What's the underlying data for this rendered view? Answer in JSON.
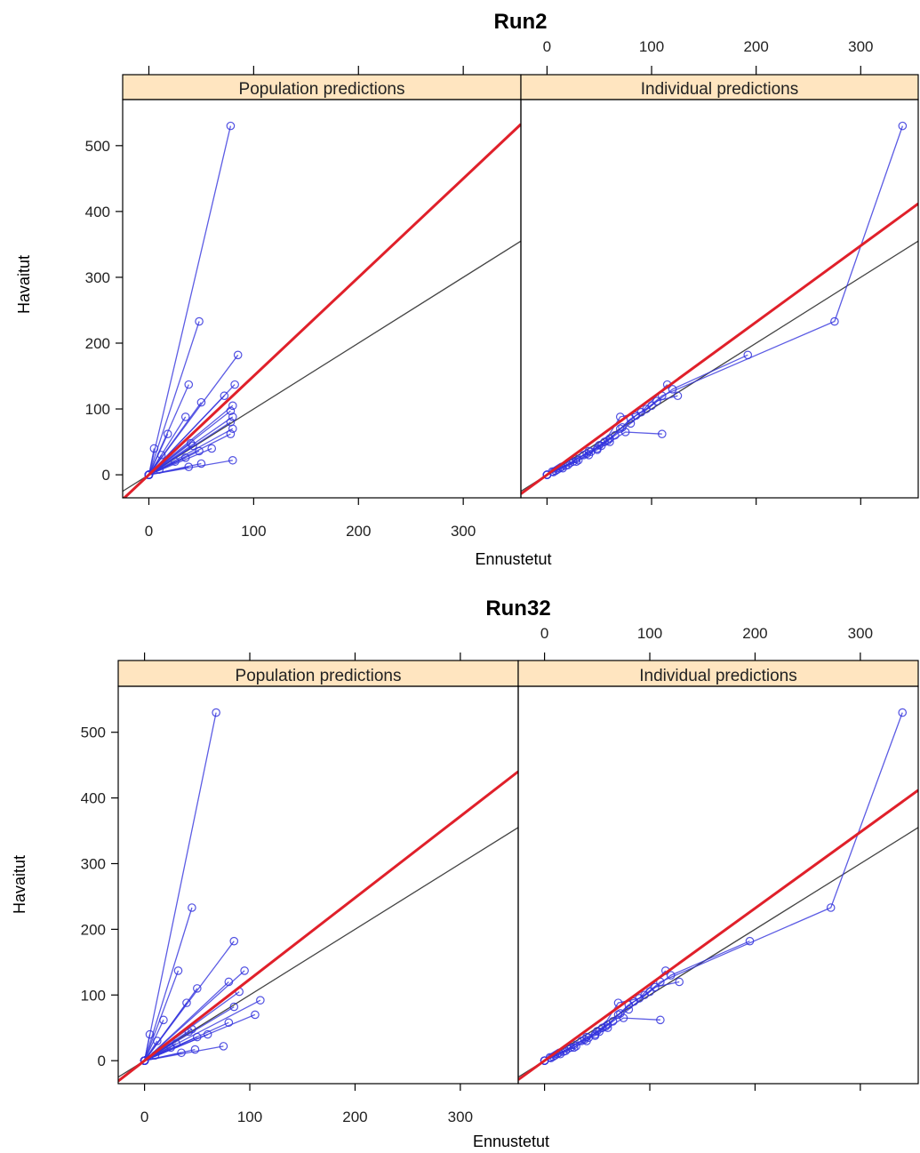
{
  "figure": {
    "xlabel": "Ennustetut",
    "ylabel": "Havaitut"
  },
  "colors": {
    "strip": "#ffe5c0",
    "points": "#3333dd",
    "fit": "#e0202a",
    "identity": "#444444",
    "frame": "#000000"
  },
  "chart_data": [
    {
      "type": "scatter",
      "title": "Run2",
      "xlabel": "Ennustetut",
      "ylabel": "Havaitut",
      "xlim": [
        -25,
        355
      ],
      "ylim": [
        -35,
        570
      ],
      "xticks": [
        0,
        100,
        200,
        300
      ],
      "yticks": [
        0,
        100,
        200,
        300,
        400,
        500
      ],
      "panels": [
        {
          "name": "Population predictions",
          "fit_line": {
            "slope": 1.5,
            "intercept": 0
          },
          "identity_line": {
            "slope": 1,
            "intercept": 0
          },
          "series": [
            [
              [
                0,
                0
              ],
              [
                78,
                530
              ]
            ],
            [
              [
                0,
                0
              ],
              [
                48,
                233
              ]
            ],
            [
              [
                0,
                0
              ],
              [
                85,
                182
              ]
            ],
            [
              [
                0,
                0
              ],
              [
                38,
                137
              ]
            ],
            [
              [
                0,
                0
              ],
              [
                82,
                137
              ]
            ],
            [
              [
                0,
                0
              ],
              [
                72,
                120
              ]
            ],
            [
              [
                0,
                0
              ],
              [
                50,
                110
              ]
            ],
            [
              [
                0,
                0
              ],
              [
                80,
                105
              ]
            ],
            [
              [
                0,
                0
              ],
              [
                78,
                97
              ]
            ],
            [
              [
                0,
                0
              ],
              [
                35,
                88
              ]
            ],
            [
              [
                0,
                0
              ],
              [
                80,
                88
              ]
            ],
            [
              [
                0,
                0
              ],
              [
                78,
                80
              ]
            ],
            [
              [
                0,
                0
              ],
              [
                80,
                70
              ]
            ],
            [
              [
                0,
                0
              ],
              [
                78,
                62
              ]
            ],
            [
              [
                0,
                0
              ],
              [
                18,
                62
              ]
            ],
            [
              [
                0,
                0
              ],
              [
                40,
                48
              ]
            ],
            [
              [
                0,
                0
              ],
              [
                5,
                40
              ]
            ],
            [
              [
                0,
                0
              ],
              [
                48,
                36
              ]
            ],
            [
              [
                0,
                0
              ],
              [
                35,
                26
              ]
            ],
            [
              [
                0,
                0
              ],
              [
                80,
                22
              ]
            ],
            [
              [
                0,
                0
              ],
              [
                50,
                17
              ]
            ],
            [
              [
                0,
                0
              ],
              [
                38,
                12
              ]
            ],
            [
              [
                0,
                0
              ],
              [
                10,
                8
              ]
            ],
            [
              [
                0,
                0
              ],
              [
                25,
                20
              ]
            ],
            [
              [
                0,
                0
              ],
              [
                12,
                30
              ]
            ],
            [
              [
                0,
                0
              ],
              [
                42,
                44
              ]
            ],
            [
              [
                0,
                0
              ],
              [
                60,
                40
              ]
            ]
          ]
        },
        {
          "name": "Individual predictions",
          "fit_line": {
            "slope": 1.16,
            "intercept": 0
          },
          "identity_line": {
            "slope": 1,
            "intercept": 0
          },
          "series": [
            [
              [
                0,
                0
              ],
              [
                5,
                5
              ],
              [
                12,
                10
              ],
              [
                20,
                15
              ],
              [
                30,
                22
              ],
              [
                40,
                30
              ],
              [
                50,
                45
              ],
              [
                60,
                55
              ],
              [
                70,
                70
              ],
              [
                80,
                85
              ],
              [
                95,
                100
              ],
              [
                110,
                120
              ],
              [
                275,
                233
              ],
              [
                340,
                530
              ]
            ],
            [
              [
                0,
                0
              ],
              [
                8,
                6
              ],
              [
                18,
                14
              ],
              [
                28,
                24
              ],
              [
                38,
                32
              ],
              [
                48,
                40
              ],
              [
                58,
                52
              ],
              [
                72,
                72
              ],
              [
                85,
                90
              ],
              [
                100,
                105
              ],
              [
                120,
                130
              ],
              [
                192,
                182
              ]
            ],
            [
              [
                0,
                0
              ],
              [
                10,
                8
              ],
              [
                22,
                18
              ],
              [
                35,
                30
              ],
              [
                48,
                38
              ],
              [
                60,
                50
              ],
              [
                75,
                65
              ],
              [
                110,
                62
              ]
            ],
            [
              [
                0,
                0
              ],
              [
                15,
                10
              ],
              [
                28,
                20
              ],
              [
                42,
                35
              ],
              [
                55,
                50
              ],
              [
                70,
                88
              ],
              [
                90,
                95
              ],
              [
                115,
                137
              ]
            ],
            [
              [
                0,
                0
              ],
              [
                6,
                4
              ],
              [
                14,
                12
              ],
              [
                25,
                20
              ],
              [
                40,
                36
              ],
              [
                52,
                44
              ],
              [
                65,
                60
              ],
              [
                80,
                78
              ],
              [
                105,
                112
              ],
              [
                125,
                120
              ]
            ]
          ]
        }
      ]
    },
    {
      "type": "scatter",
      "title": "Run32",
      "xlabel": "Ennustetut",
      "ylabel": "Havaitut",
      "xlim": [
        -25,
        355
      ],
      "ylim": [
        -35,
        570
      ],
      "xticks": [
        0,
        100,
        200,
        300
      ],
      "yticks": [
        0,
        100,
        200,
        300,
        400,
        500
      ],
      "panels": [
        {
          "name": "Population predictions",
          "fit_line": {
            "slope": 1.24,
            "intercept": 0
          },
          "identity_line": {
            "slope": 1,
            "intercept": 0
          },
          "series": [
            [
              [
                0,
                0
              ],
              [
                68,
                530
              ]
            ],
            [
              [
                0,
                0
              ],
              [
                45,
                233
              ]
            ],
            [
              [
                0,
                0
              ],
              [
                85,
                182
              ]
            ],
            [
              [
                0,
                0
              ],
              [
                32,
                137
              ]
            ],
            [
              [
                0,
                0
              ],
              [
                95,
                137
              ]
            ],
            [
              [
                0,
                0
              ],
              [
                80,
                120
              ]
            ],
            [
              [
                0,
                0
              ],
              [
                50,
                110
              ]
            ],
            [
              [
                0,
                0
              ],
              [
                90,
                105
              ]
            ],
            [
              [
                0,
                0
              ],
              [
                110,
                92
              ]
            ],
            [
              [
                0,
                0
              ],
              [
                40,
                88
              ]
            ],
            [
              [
                0,
                0
              ],
              [
                85,
                82
              ]
            ],
            [
              [
                0,
                0
              ],
              [
                105,
                70
              ]
            ],
            [
              [
                0,
                0
              ],
              [
                18,
                62
              ]
            ],
            [
              [
                0,
                0
              ],
              [
                80,
                58
              ]
            ],
            [
              [
                0,
                0
              ],
              [
                45,
                48
              ]
            ],
            [
              [
                0,
                0
              ],
              [
                5,
                40
              ]
            ],
            [
              [
                0,
                0
              ],
              [
                50,
                36
              ]
            ],
            [
              [
                0,
                0
              ],
              [
                30,
                26
              ]
            ],
            [
              [
                0,
                0
              ],
              [
                75,
                22
              ]
            ],
            [
              [
                0,
                0
              ],
              [
                48,
                17
              ]
            ],
            [
              [
                0,
                0
              ],
              [
                35,
                12
              ]
            ],
            [
              [
                0,
                0
              ],
              [
                10,
                8
              ]
            ],
            [
              [
                0,
                0
              ],
              [
                25,
                20
              ]
            ],
            [
              [
                0,
                0
              ],
              [
                12,
                30
              ]
            ],
            [
              [
                0,
                0
              ],
              [
                42,
                44
              ]
            ],
            [
              [
                0,
                0
              ],
              [
                60,
                40
              ]
            ]
          ]
        },
        {
          "name": "Individual predictions",
          "fit_line": {
            "slope": 1.16,
            "intercept": 0
          },
          "identity_line": {
            "slope": 1,
            "intercept": 0
          },
          "series": [
            [
              [
                0,
                0
              ],
              [
                5,
                5
              ],
              [
                12,
                10
              ],
              [
                20,
                15
              ],
              [
                30,
                22
              ],
              [
                40,
                30
              ],
              [
                50,
                45
              ],
              [
                60,
                55
              ],
              [
                70,
                70
              ],
              [
                80,
                85
              ],
              [
                95,
                100
              ],
              [
                110,
                120
              ],
              [
                272,
                233
              ],
              [
                340,
                530
              ]
            ],
            [
              [
                0,
                0
              ],
              [
                8,
                6
              ],
              [
                18,
                14
              ],
              [
                28,
                24
              ],
              [
                38,
                32
              ],
              [
                48,
                40
              ],
              [
                58,
                52
              ],
              [
                72,
                72
              ],
              [
                85,
                90
              ],
              [
                100,
                105
              ],
              [
                120,
                130
              ],
              [
                195,
                182
              ]
            ],
            [
              [
                0,
                0
              ],
              [
                10,
                8
              ],
              [
                22,
                18
              ],
              [
                35,
                30
              ],
              [
                48,
                38
              ],
              [
                60,
                50
              ],
              [
                75,
                65
              ],
              [
                110,
                62
              ]
            ],
            [
              [
                0,
                0
              ],
              [
                15,
                10
              ],
              [
                28,
                20
              ],
              [
                42,
                35
              ],
              [
                55,
                50
              ],
              [
                70,
                88
              ],
              [
                90,
                95
              ],
              [
                115,
                137
              ]
            ],
            [
              [
                0,
                0
              ],
              [
                6,
                4
              ],
              [
                14,
                12
              ],
              [
                25,
                20
              ],
              [
                40,
                36
              ],
              [
                52,
                44
              ],
              [
                65,
                60
              ],
              [
                80,
                78
              ],
              [
                105,
                112
              ],
              [
                128,
                120
              ]
            ]
          ]
        }
      ]
    }
  ]
}
